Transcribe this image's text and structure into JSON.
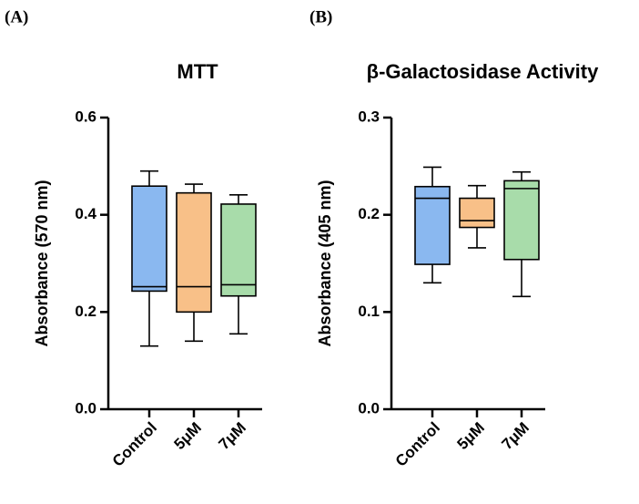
{
  "chart_data": [
    {
      "type": "box",
      "panel_label": "(A)",
      "title": "MTT",
      "y_label": "Absorbance (570 nm)",
      "categories": [
        "Control",
        "5μM",
        "7μM"
      ],
      "colors": [
        "#8ab8f0",
        "#f8c088",
        "#a8dcaa"
      ],
      "min": [
        0.13,
        0.14,
        0.155
      ],
      "q1": [
        0.243,
        0.2,
        0.233
      ],
      "median": [
        0.252,
        0.252,
        0.256
      ],
      "q3": [
        0.459,
        0.445,
        0.422
      ],
      "max": [
        0.49,
        0.463,
        0.441
      ],
      "ylim": [
        0,
        0.6
      ],
      "yticks": [
        {
          "value": 0,
          "label": "0.0"
        },
        0.2,
        0.4,
        0.6
      ]
    },
    {
      "type": "box",
      "panel_label": "(B)",
      "title": "β-Galactosidase Activity",
      "y_label": "Absorbance (405 nm)",
      "categories": [
        "Control",
        "5μM",
        "7μM"
      ],
      "colors": [
        "#8ab8f0",
        "#f8c088",
        "#a8dcaa"
      ],
      "min": [
        0.13,
        0.166,
        0.116
      ],
      "q1": [
        0.149,
        0.187,
        0.154
      ],
      "median": [
        0.217,
        0.194,
        0.227
      ],
      "q3": [
        0.229,
        0.217,
        0.235
      ],
      "max": [
        0.249,
        0.23,
        0.244
      ],
      "ylim": [
        0,
        0.3
      ],
      "yticks": [
        {
          "value": 0,
          "label": "0.0"
        },
        0.1,
        0.2,
        0.3
      ]
    }
  ]
}
